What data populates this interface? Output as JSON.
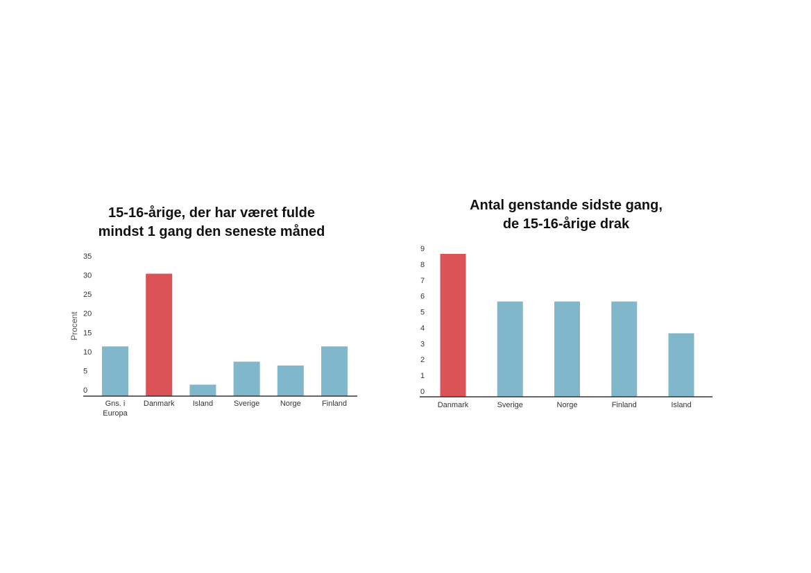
{
  "chart_data": [
    {
      "type": "bar",
      "title_lines": [
        "15-16-årige, der har været fulde",
        "mindst 1 gang den seneste måned"
      ],
      "ylabel": "Procent",
      "xlabel": "",
      "ylim": [
        0,
        35
      ],
      "yticks": [
        "0",
        "5",
        "10",
        "15",
        "20",
        "25",
        "30",
        "35"
      ],
      "categories": [
        [
          "Gns. i",
          "Europa"
        ],
        [
          "Danmark"
        ],
        [
          "Island"
        ],
        [
          "Sverige"
        ],
        [
          "Norge"
        ],
        [
          "Finland"
        ]
      ],
      "values": [
        13,
        32,
        3,
        9,
        8,
        13
      ],
      "highlight_index": 1,
      "grid": false
    },
    {
      "type": "bar",
      "title_lines": [
        "Antal genstande sidste gang,",
        "de 15-16-årige drak"
      ],
      "ylabel": "",
      "xlabel": "",
      "ylim": [
        0,
        9
      ],
      "yticks": [
        "0",
        "1",
        "2",
        "3",
        "4",
        "5",
        "6",
        "7",
        "8",
        "9"
      ],
      "categories": [
        [
          "Danmark"
        ],
        [
          "Sverige"
        ],
        [
          "Norge"
        ],
        [
          "Finland"
        ],
        [
          "Island"
        ]
      ],
      "values": [
        9,
        6,
        6,
        6,
        4
      ],
      "highlight_index": 0,
      "grid": false
    }
  ],
  "colors": {
    "bar": "#80b7cb",
    "highlight": "#db5356",
    "axis": "#333333"
  }
}
